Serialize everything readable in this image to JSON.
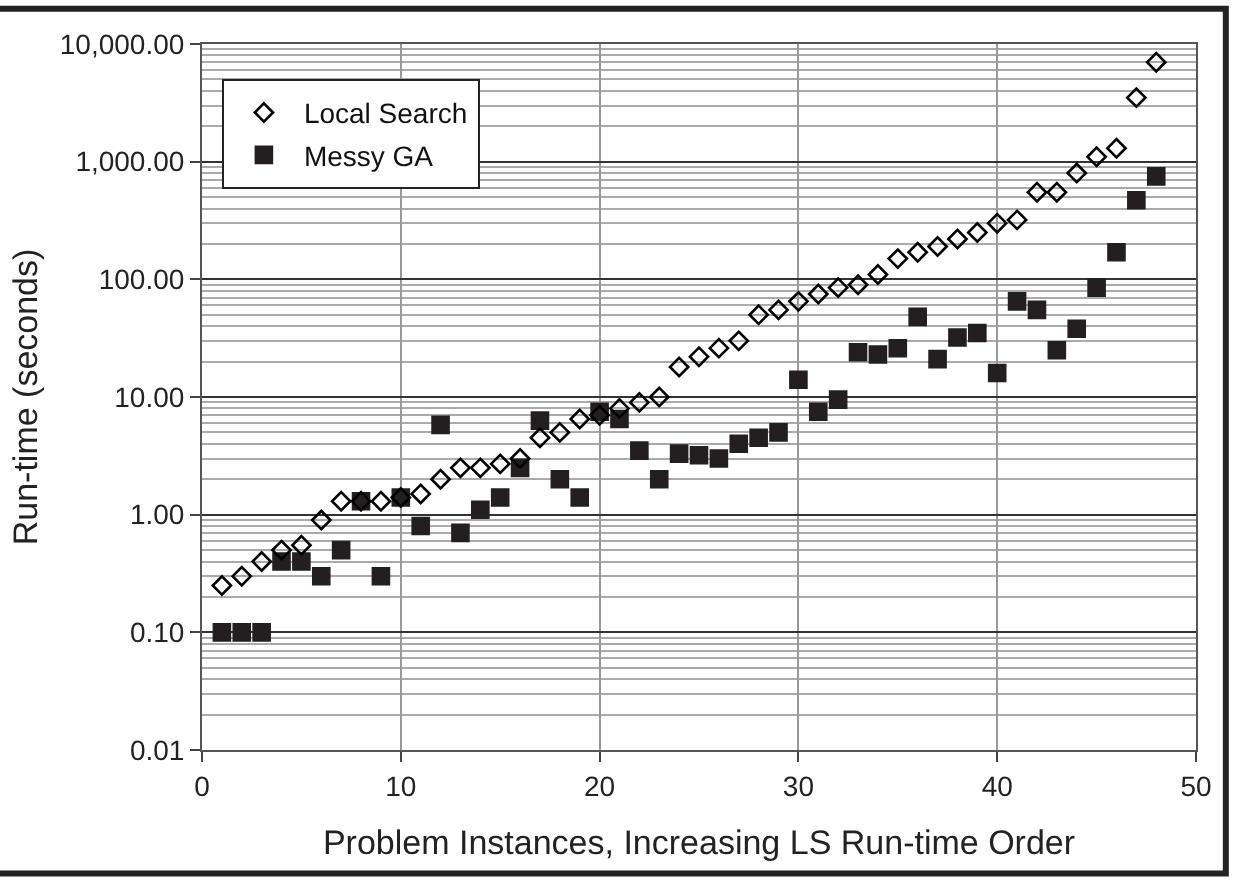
{
  "chart_data": {
    "type": "scatter",
    "xlabel": "Problem Instances, Increasing LS Run-time Order",
    "ylabel": "Run-time (seconds)",
    "log": "y",
    "grid": true,
    "legend": "top left",
    "xlim": [
      0,
      50
    ],
    "xticks": [
      0,
      10,
      20,
      30,
      40,
      50
    ],
    "ylim": [
      0.01,
      10000
    ],
    "yticks": [
      {
        "value": 0.01,
        "label": "0.01"
      },
      {
        "value": 0.1,
        "label": "0.10"
      },
      {
        "value": 1,
        "label": "1.00"
      },
      {
        "value": 10,
        "label": "10.00"
      },
      {
        "value": 100,
        "label": "100.00"
      },
      {
        "value": 1000,
        "label": "1,000.00"
      },
      {
        "value": 10000,
        "label": "10,000.00"
      }
    ],
    "x": [
      1,
      2,
      3,
      4,
      5,
      6,
      7,
      8,
      9,
      10,
      11,
      12,
      13,
      14,
      15,
      16,
      17,
      18,
      19,
      20,
      21,
      22,
      23,
      24,
      25,
      26,
      27,
      28,
      29,
      30,
      31,
      32,
      33,
      34,
      35,
      36,
      37,
      38,
      39,
      40,
      41,
      42,
      43,
      44,
      45,
      46,
      47,
      48
    ],
    "series": [
      {
        "name": "Local Search",
        "color": "#000000",
        "marker": "diamond",
        "values": [
          0.25,
          0.3,
          0.4,
          0.5,
          0.55,
          0.9,
          1.3,
          1.3,
          1.3,
          1.4,
          1.5,
          2.0,
          2.5,
          2.5,
          2.7,
          3,
          4.5,
          5,
          6.5,
          7,
          8,
          9,
          10,
          18,
          22,
          26,
          30,
          50,
          55,
          65,
          75,
          85,
          90,
          110,
          150,
          170,
          190,
          220,
          250,
          300,
          320,
          550,
          550,
          800,
          1100,
          1300,
          3500,
          7000
        ]
      },
      {
        "name": "Messy GA",
        "color": "#231f20",
        "marker": "square",
        "values": [
          0.1,
          0.1,
          0.1,
          0.4,
          0.4,
          0.3,
          0.5,
          1.3,
          0.3,
          1.4,
          0.8,
          5.8,
          0.7,
          1.1,
          1.4,
          2.5,
          6.3,
          2.0,
          1.4,
          7.5,
          6.5,
          3.5,
          2.0,
          3.3,
          3.2,
          3.0,
          4.0,
          4.5,
          5.0,
          14,
          7.5,
          9.5,
          24,
          23,
          26,
          48,
          21,
          32,
          35,
          16,
          65,
          55,
          25,
          38,
          85,
          170,
          470,
          750
        ]
      }
    ]
  }
}
